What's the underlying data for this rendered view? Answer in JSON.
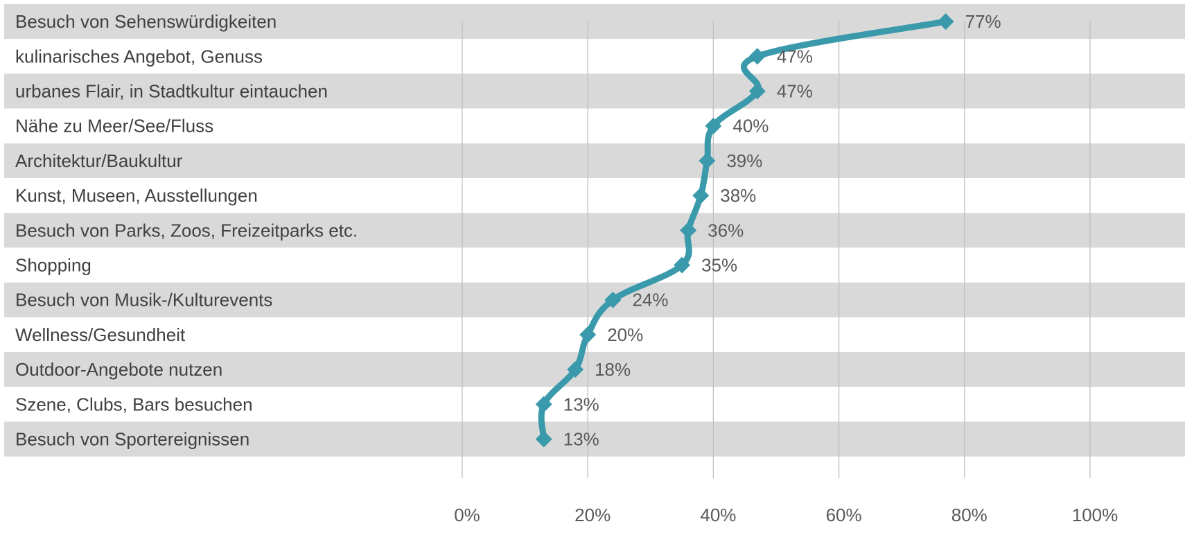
{
  "chart_data": {
    "type": "line",
    "orientation": "horizontal",
    "categories": [
      "Besuch von Sehenswürdigkeiten",
      "kulinarisches Angebot, Genuss",
      "urbanes Flair, in Stadtkultur eintauchen",
      "Nähe zu Meer/See/Fluss",
      "Architektur/Baukultur",
      "Kunst, Museen, Ausstellungen",
      "Besuch von Parks, Zoos, Freizeitparks etc.",
      "Shopping",
      "Besuch von Musik-/Kulturevents",
      "Wellness/Gesundheit",
      "Outdoor-Angebote nutzen",
      "Szene, Clubs, Bars besuchen",
      "Besuch von Sportereignissen"
    ],
    "series": [
      {
        "values": [
          77,
          47,
          47,
          40,
          39,
          38,
          36,
          35,
          24,
          20,
          18,
          13,
          13
        ],
        "data_labels": [
          "77%",
          "47%",
          "47%",
          "40%",
          "39%",
          "38%",
          "36%",
          "35%",
          "24%",
          "20%",
          "18%",
          "13%",
          "13%"
        ]
      }
    ],
    "xlim": [
      0,
      100
    ],
    "x_ticks": [
      0,
      20,
      40,
      60,
      80,
      100
    ],
    "x_tick_labels": [
      "0%",
      "20%",
      "40%",
      "60%",
      "80%",
      "100%"
    ],
    "title": "",
    "xlabel": "",
    "ylabel": "",
    "grid": "vertical",
    "legend": "none",
    "row_band_colors": [
      "#d9d9d9",
      "#ffffff"
    ],
    "line_color": "#3a9aab",
    "gridline_color": "#bfbfbf"
  }
}
